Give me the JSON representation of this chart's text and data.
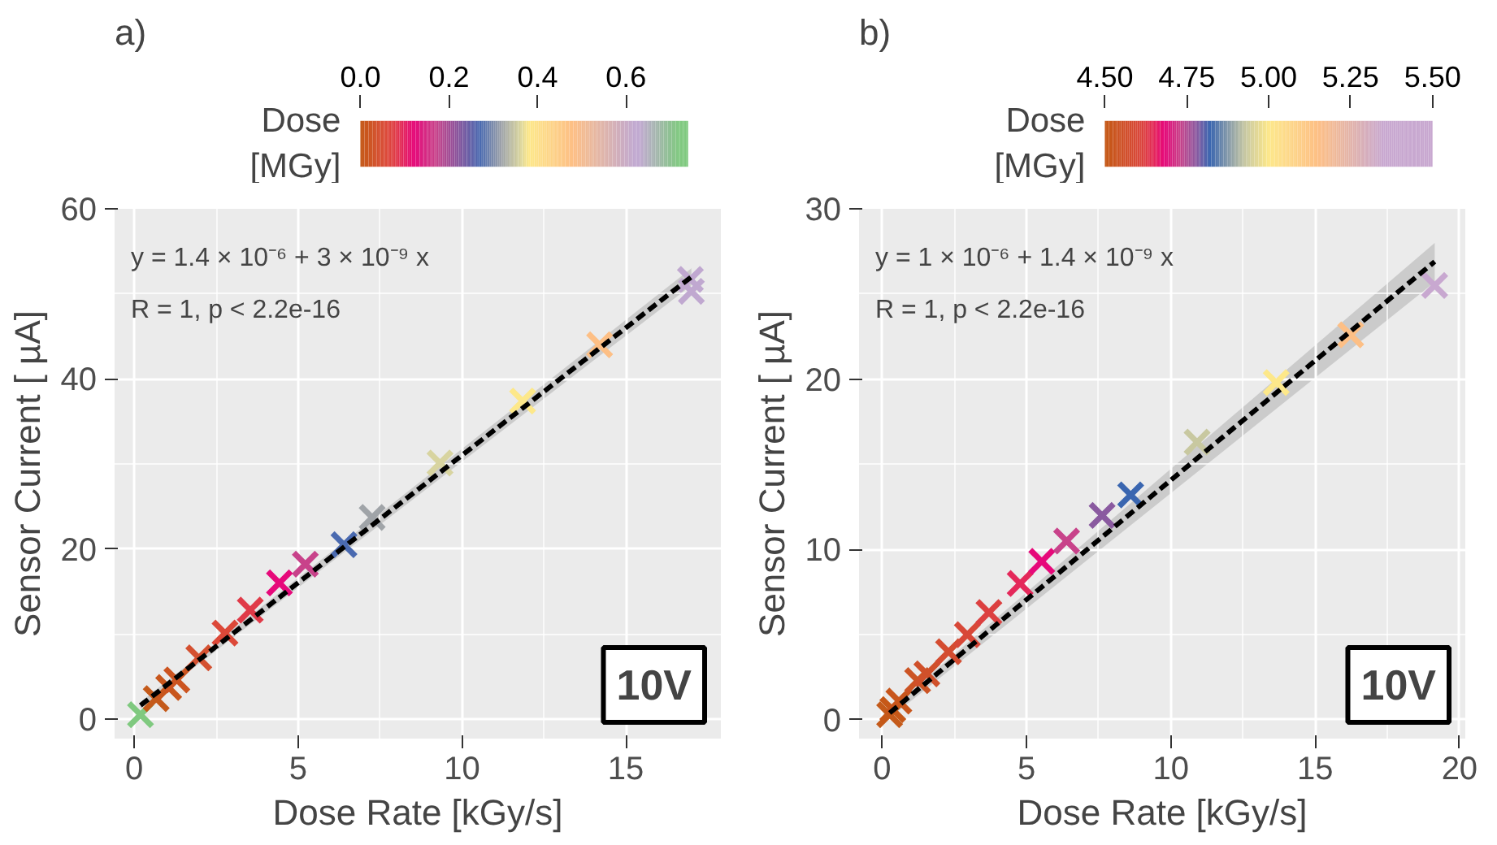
{
  "chart_data": [
    {
      "type": "scatter",
      "title": "a)",
      "xlabel": "Dose Rate [kGy/s]",
      "ylabel": "Sensor Current [ µA]",
      "clabel": "Dose [MGy]",
      "clim": [
        0,
        0.74
      ],
      "cticks": [
        {
          "value": 0,
          "label": "0.0"
        },
        {
          "value": 0.2,
          "label": "0.2"
        },
        {
          "value": 0.4,
          "label": "0.4"
        },
        {
          "value": 0.6,
          "label": "0.6"
        }
      ],
      "xlim": [
        -0.6,
        17.9
      ],
      "ylim": [
        -2.3,
        60
      ],
      "xticks": [
        0,
        5,
        10,
        15
      ],
      "yticks": [
        0,
        20,
        40,
        60
      ],
      "grid": true,
      "marker": "cross",
      "annotations": [
        "y = 1.4 × 10⁻⁶ + 3 × 10⁻⁹ x",
        "R = 1, p < 2.2e-16",
        "10V"
      ],
      "series": [
        {
          "type": "line",
          "marker": "none",
          "color": "#000000",
          "line_style": "dashed",
          "x": [
            0.19,
            17.0
          ],
          "values": [
            1.6,
            52.0
          ],
          "lower": [
            1.2,
            51.0
          ],
          "upper": [
            2.0,
            53.0
          ]
        },
        {
          "x": [
            0.19,
            0.67,
            1.05,
            1.3,
            1.97,
            2.77,
            3.54,
            4.43,
            5.22,
            6.4,
            7.26,
            9.33,
            11.85,
            14.2,
            16.97,
            17.0
          ],
          "values": [
            0.5,
            2.4,
            3.7,
            4.6,
            7.2,
            10.1,
            12.8,
            16.0,
            18.2,
            20.5,
            23.7,
            30.1,
            37.4,
            44.0,
            51.7,
            50.3
          ],
          "cvalues": [
            0.72,
            0.0,
            0.01,
            0.02,
            0.04,
            0.06,
            0.08,
            0.12,
            0.17,
            0.27,
            0.32,
            0.36,
            0.38,
            0.48,
            0.62,
            0.63
          ],
          "colors": [
            "#7fc97f",
            "#c45a1a",
            "#c8561c",
            "#cc5420",
            "#d45030",
            "#dc4838",
            "#e03a48",
            "#e6097a",
            "#c8428a",
            "#4a6ab0",
            "#a0a4a8",
            "#d8d4a0",
            "#fde88a",
            "#fdbf85",
            "#c0a8d0",
            "#c0a8d0"
          ]
        }
      ]
    },
    {
      "type": "scatter",
      "title": "b)",
      "xlabel": "Dose Rate [kGy/s]",
      "ylabel": "Sensor Current [ µA]",
      "clabel": "Dose [MGy]",
      "clim": [
        4.5,
        5.5
      ],
      "cticks": [
        {
          "value": 4.5,
          "label": "4.50"
        },
        {
          "value": 4.75,
          "label": "4.75"
        },
        {
          "value": 5.0,
          "label": "5.00"
        },
        {
          "value": 5.25,
          "label": "5.25"
        },
        {
          "value": 5.5,
          "label": "5.50"
        }
      ],
      "xlim": [
        -0.8,
        20.2
      ],
      "ylim": [
        -1.1,
        30
      ],
      "xticks": [
        0,
        5,
        10,
        15,
        20
      ],
      "yticks": [
        0,
        10,
        20,
        30
      ],
      "grid": true,
      "marker": "cross",
      "annotations": [
        "y = 1 × 10⁻⁶ + 1.4 × 10⁻⁹ x",
        "R = 1, p < 2.2e-16",
        "10V"
      ],
      "series": [
        {
          "type": "line",
          "marker": "none",
          "color": "#000000",
          "line_style": "dashed",
          "x": [
            0.26,
            19.14
          ],
          "values": [
            0.4,
            26.9
          ],
          "lower": [
            0.1,
            25.7
          ],
          "upper": [
            0.6,
            28.0
          ]
        },
        {
          "x": [
            0.26,
            0.37,
            0.58,
            1.23,
            1.55,
            2.3,
            2.95,
            3.7,
            4.78,
            5.53,
            6.39,
            7.62,
            8.61,
            10.91,
            13.65,
            16.23,
            19.14
          ],
          "values": [
            0.3,
            0.6,
            1.1,
            2.3,
            2.7,
            4.0,
            5.0,
            6.3,
            8.0,
            9.3,
            10.5,
            12.0,
            13.2,
            16.3,
            19.8,
            22.6,
            25.5
          ],
          "cvalues": [
            4.5,
            4.51,
            4.52,
            4.54,
            4.56,
            4.58,
            4.6,
            4.62,
            4.65,
            4.68,
            4.73,
            4.78,
            4.82,
            4.93,
            5.0,
            5.15,
            5.35
          ],
          "colors": [
            "#c45a1a",
            "#c65818",
            "#c8561c",
            "#cc5424",
            "#d0502a",
            "#d44c30",
            "#d84838",
            "#dc4040",
            "#e4285a",
            "#e6097a",
            "#c8428a",
            "#8a5aa0",
            "#3a66b0",
            "#c8c8a0",
            "#fde88a",
            "#fdbf85",
            "#c8a8d0"
          ]
        }
      ]
    }
  ]
}
